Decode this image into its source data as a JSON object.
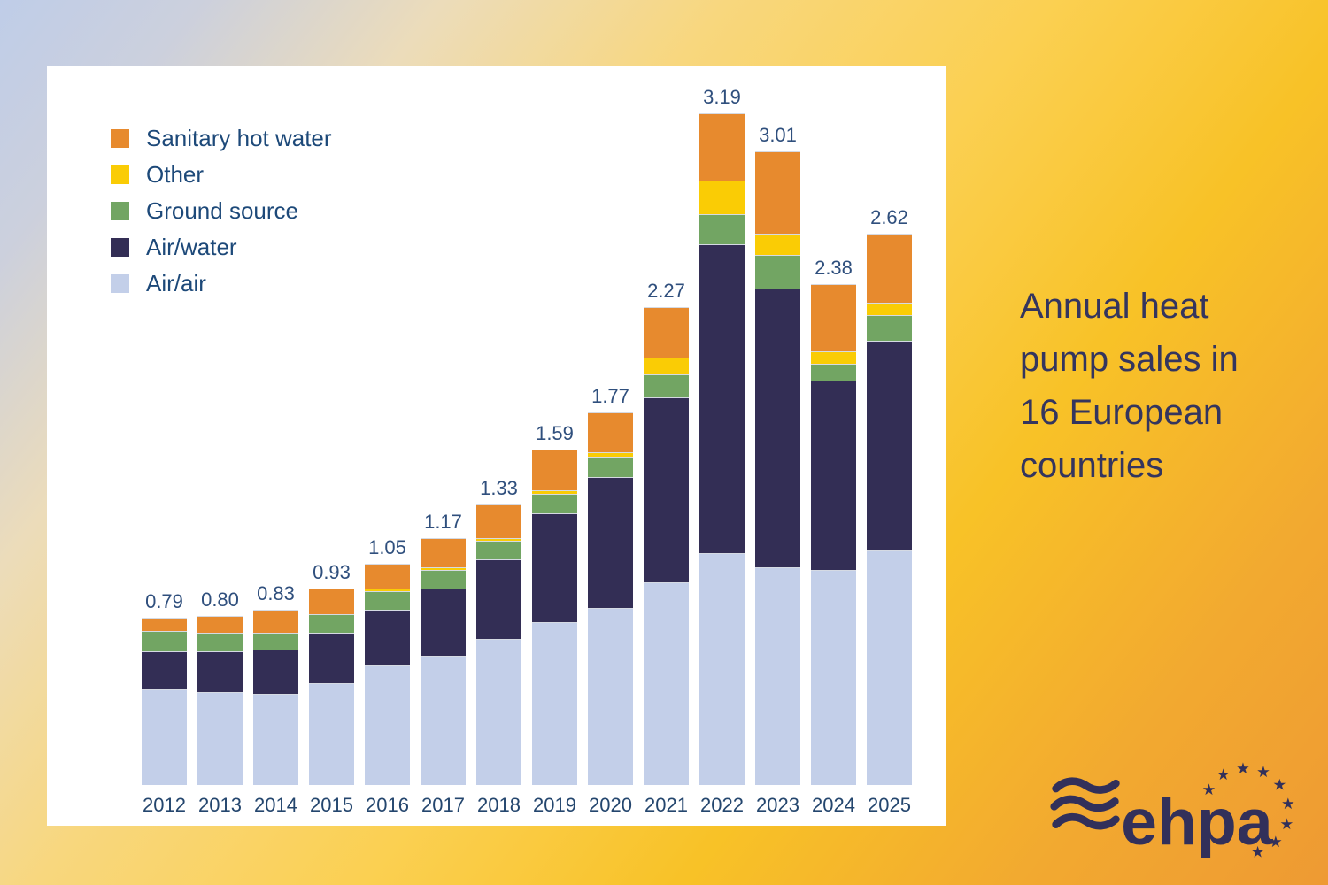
{
  "title": {
    "text": "Annual heat pump sales in 16 European countries"
  },
  "logo": {
    "text": "ehpa"
  },
  "colors": {
    "background_top_left": "#bfcde8",
    "background_bottom_right": "#ee9a33",
    "panel": "#ffffff",
    "legend_text": "#1d4979",
    "value_label": "#2f4f7d",
    "year_label": "#24466e",
    "title_text": "#34355e",
    "logo_navy": "#32305a",
    "segment_separator": "#d5dae3"
  },
  "chart_data": {
    "type": "bar",
    "stacked": true,
    "title": "Annual heat pump sales in 16 European countries",
    "xlabel": "",
    "ylabel": "",
    "value_axis_visible": false,
    "grid": false,
    "legend_position": "top-left",
    "legend_order_top_to_bottom": [
      "Sanitary hot water",
      "Other",
      "Ground source",
      "Air/water",
      "Air/air"
    ],
    "categories": [
      "2012",
      "2013",
      "2014",
      "2015",
      "2016",
      "2017",
      "2018",
      "2019",
      "2020",
      "2021",
      "2022",
      "2023",
      "2024",
      "2025"
    ],
    "series": [
      {
        "key": "air_air",
        "name": "Air/air",
        "color": "#c3cfe9",
        "values": [
          0.45,
          0.44,
          0.43,
          0.48,
          0.57,
          0.61,
          0.69,
          0.77,
          0.84,
          0.96,
          1.1,
          1.03,
          1.02,
          1.11
        ]
      },
      {
        "key": "air_water",
        "name": "Air/water",
        "color": "#332e55",
        "values": [
          0.18,
          0.19,
          0.21,
          0.24,
          0.26,
          0.32,
          0.38,
          0.52,
          0.62,
          0.88,
          1.47,
          1.33,
          0.9,
          1.0
        ]
      },
      {
        "key": "ground_source",
        "name": "Ground source",
        "color": "#72a563",
        "values": [
          0.1,
          0.09,
          0.08,
          0.09,
          0.09,
          0.09,
          0.09,
          0.09,
          0.1,
          0.11,
          0.14,
          0.16,
          0.08,
          0.12
        ]
      },
      {
        "key": "other",
        "name": "Other",
        "color": "#facc05",
        "values": [
          0,
          0,
          0,
          0,
          0.01,
          0.01,
          0.01,
          0.02,
          0.02,
          0.08,
          0.16,
          0.1,
          0.06,
          0.06
        ]
      },
      {
        "key": "sanitary_hot_water",
        "name": "Sanitary hot water",
        "color": "#e78a2e",
        "values": [
          0.06,
          0.08,
          0.11,
          0.12,
          0.12,
          0.14,
          0.16,
          0.19,
          0.19,
          0.24,
          0.32,
          0.39,
          0.32,
          0.33
        ]
      }
    ],
    "totals": [
      "0.79",
      "0.80",
      "0.83",
      "0.93",
      "1.05",
      "1.17",
      "1.33",
      "1.59",
      "1.77",
      "2.27",
      "3.19",
      "3.01",
      "2.38",
      "2.62"
    ]
  }
}
